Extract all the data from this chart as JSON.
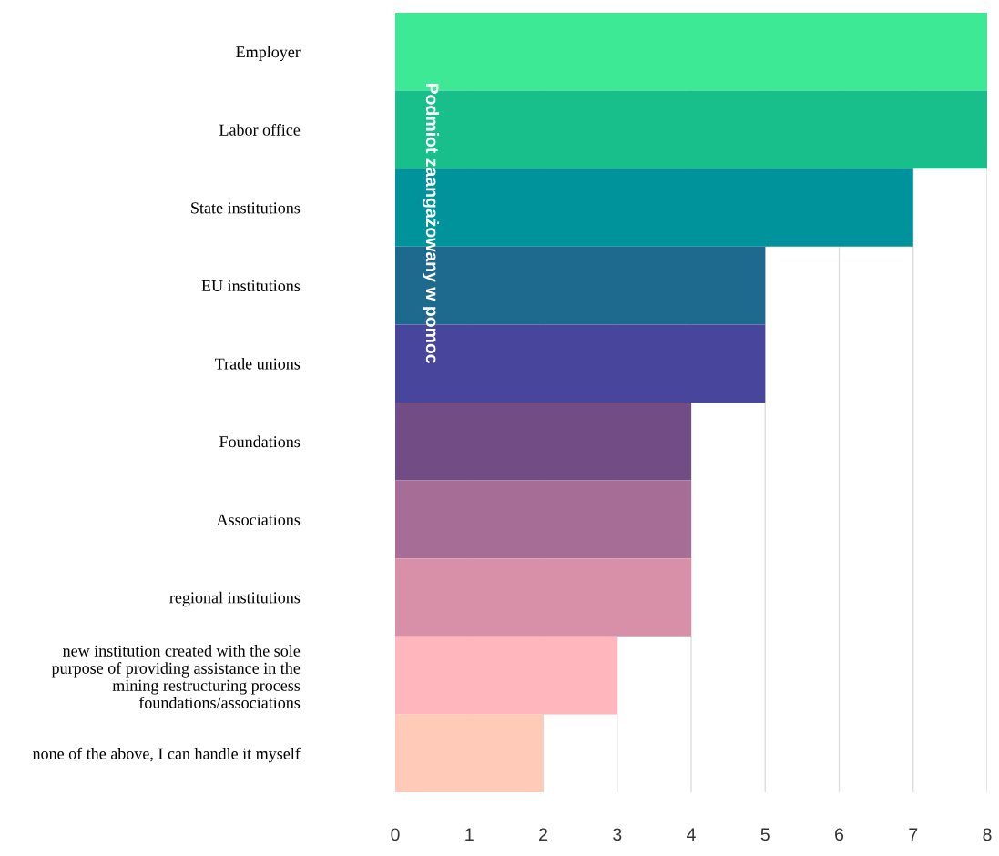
{
  "chart_data": {
    "type": "bar",
    "orientation": "horizontal",
    "ylabel": "Podmiot zaangażowany w pomoc",
    "categories": [
      "Employer",
      "Labor office",
      "State institutions",
      "EU institutions",
      "Trade unions",
      "Foundations",
      "Associations",
      "regional institutions",
      "new institution created with the sole\npurpose of providing assistance in the\nmining restructuring process\nfoundations/associations",
      "none of the above, I can handle it myself"
    ],
    "values": [
      8,
      8,
      7,
      5,
      5,
      4,
      4,
      4,
      3,
      2
    ],
    "colors": [
      "#3de994",
      "#19bf8a",
      "#00939b",
      "#1e6a8f",
      "#48459d",
      "#724c85",
      "#a66e96",
      "#d890a9",
      "#ffb6bc",
      "#ffcab8"
    ],
    "xlim": [
      0,
      8
    ],
    "xticks": [
      0,
      1,
      2,
      3,
      4,
      5,
      6,
      7,
      8
    ],
    "grid": "x",
    "legend": false
  }
}
